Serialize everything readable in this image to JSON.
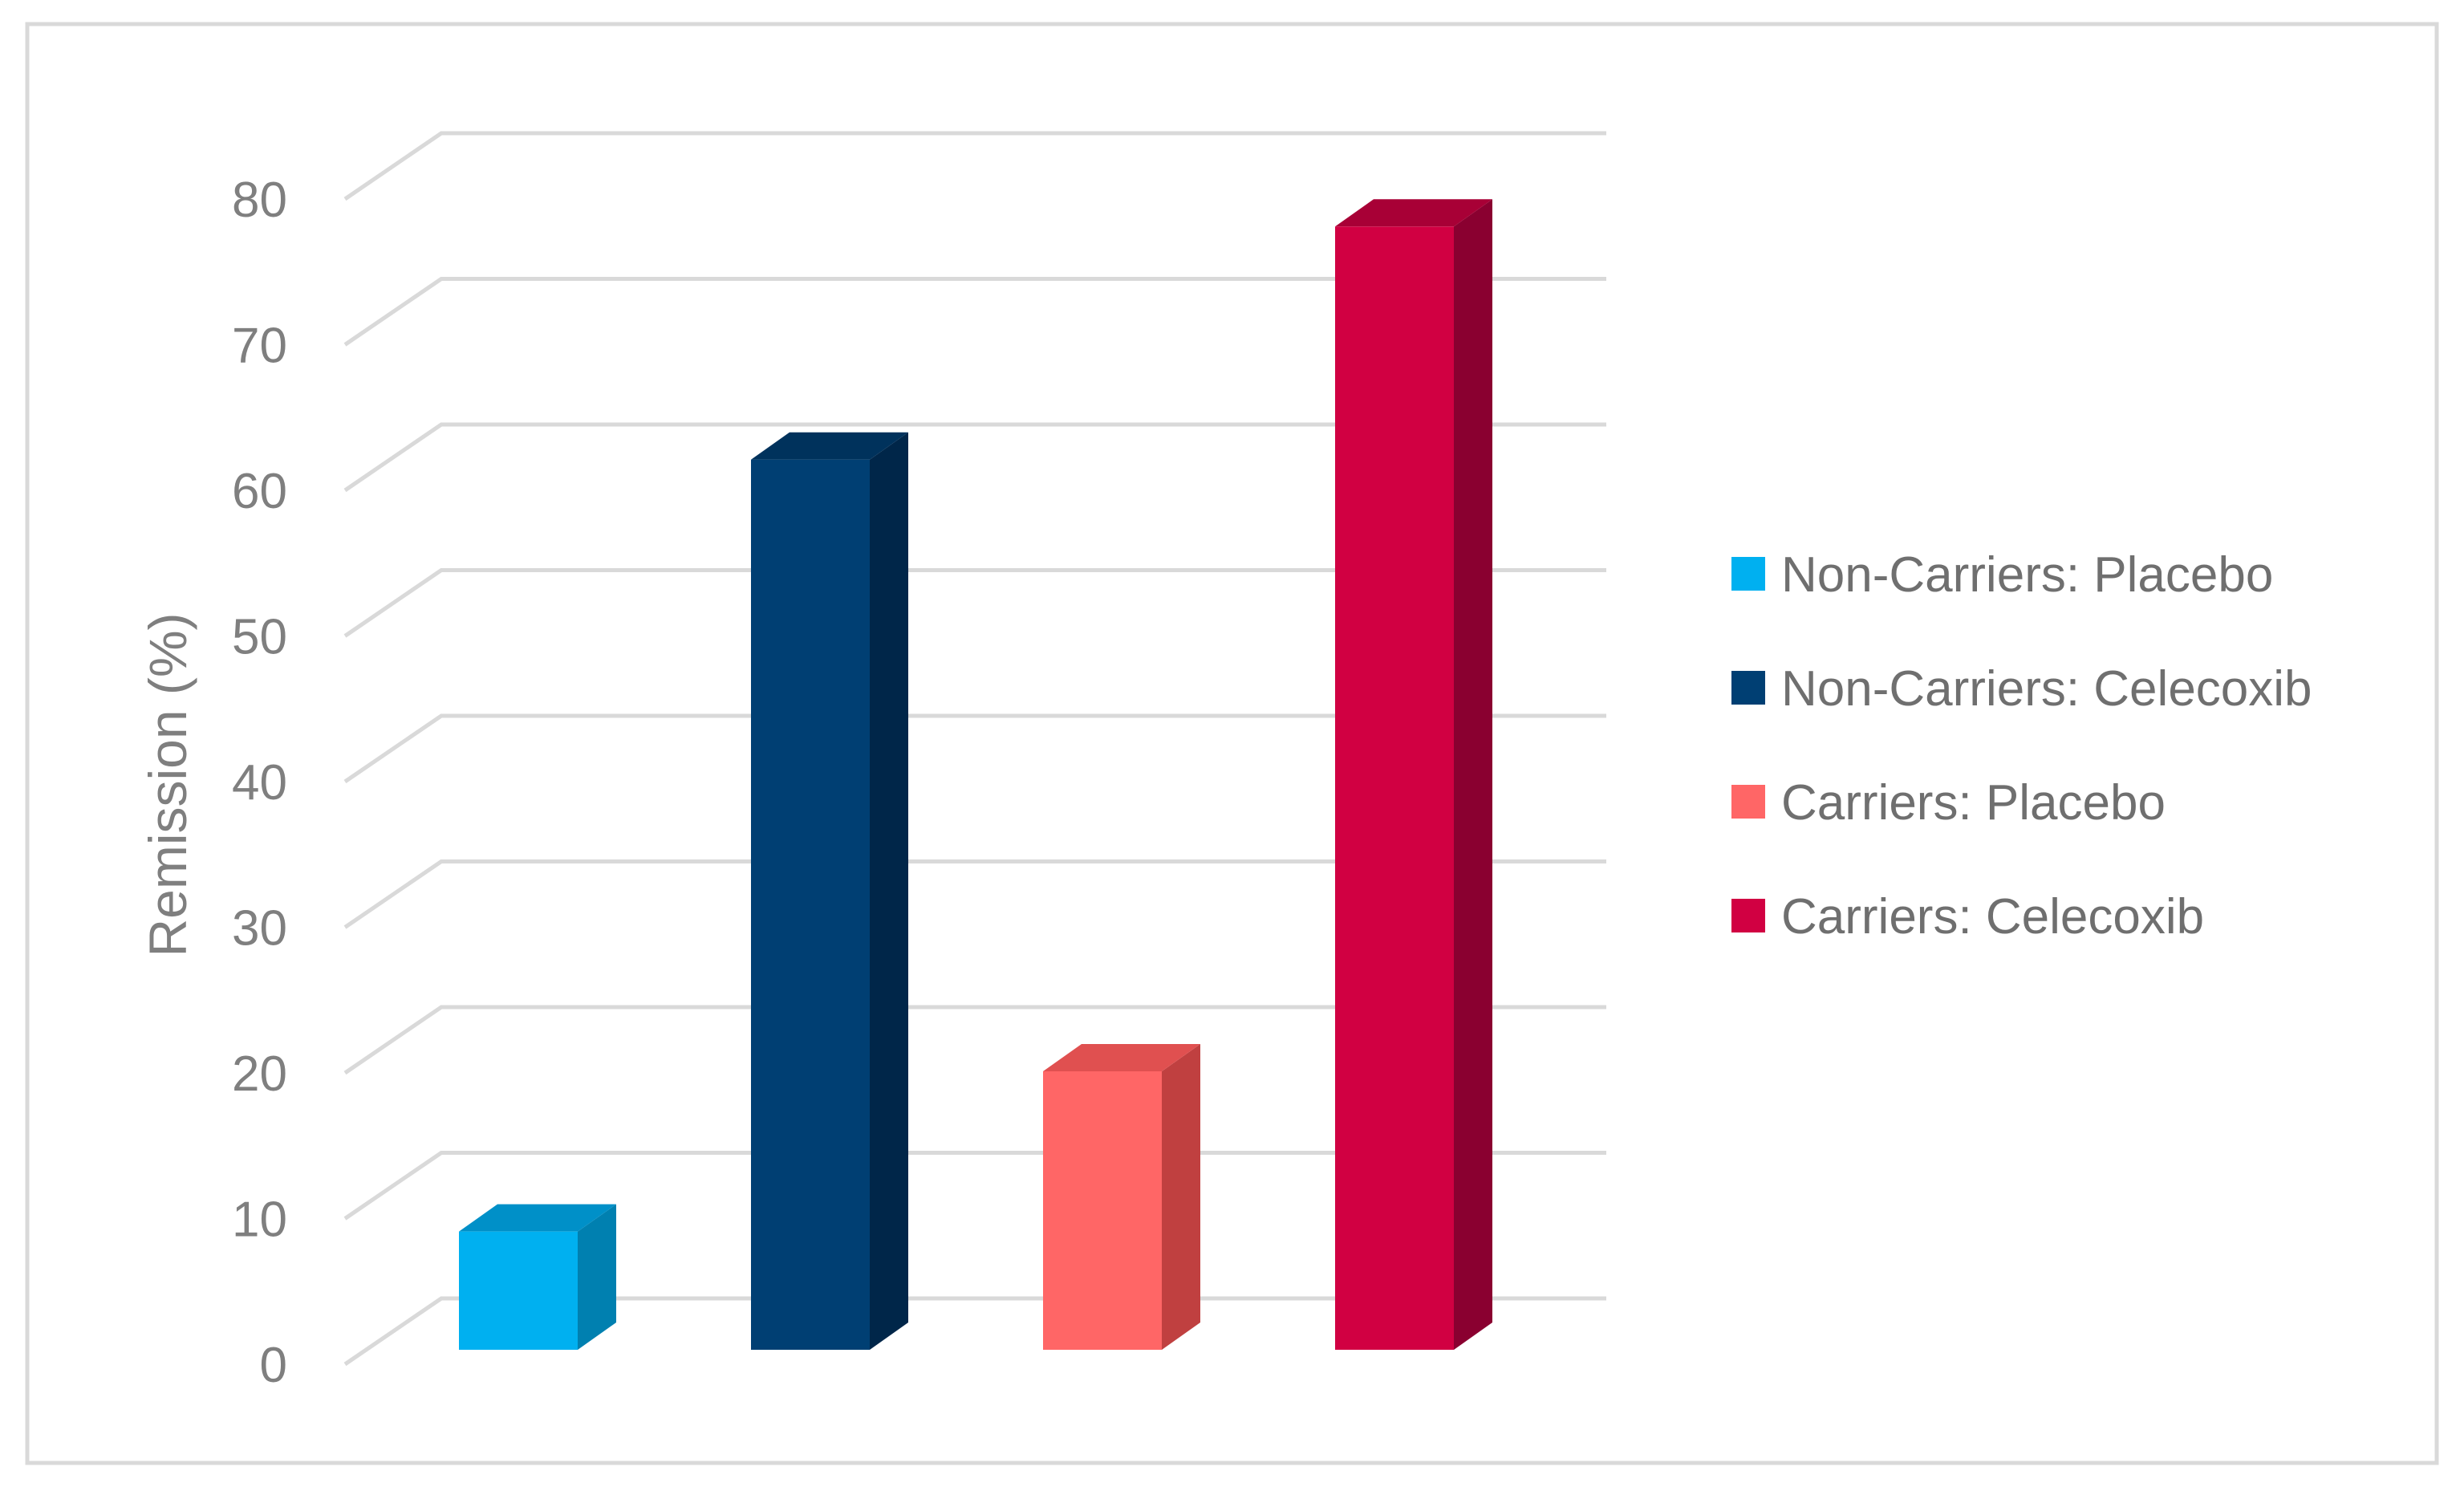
{
  "chart_data": {
    "type": "bar",
    "style": "3d-column",
    "title": "",
    "xlabel": "",
    "ylabel": "Remission (%)",
    "ylim": [
      0,
      80
    ],
    "yticks": [
      0,
      10,
      20,
      30,
      40,
      50,
      60,
      70,
      80
    ],
    "grid": true,
    "legend_position": "right",
    "series": [
      {
        "name": "Non-Carriers: Placebo",
        "value": 9,
        "color": "#00b0f0",
        "side_color": "#0080b0",
        "top_color": "#0090c8"
      },
      {
        "name": "Non-Carriers: Celecoxib",
        "value": 62,
        "color": "#003f73",
        "side_color": "#002649",
        "top_color": "#00325c"
      },
      {
        "name": "Carriers: Placebo",
        "value": 20,
        "color": "#ff6666",
        "side_color": "#c04040",
        "top_color": "#e05050"
      },
      {
        "name": "Carriers: Celecoxib",
        "value": 78,
        "color": "#d10042",
        "side_color": "#8a0030",
        "top_color": "#a80036"
      }
    ]
  }
}
